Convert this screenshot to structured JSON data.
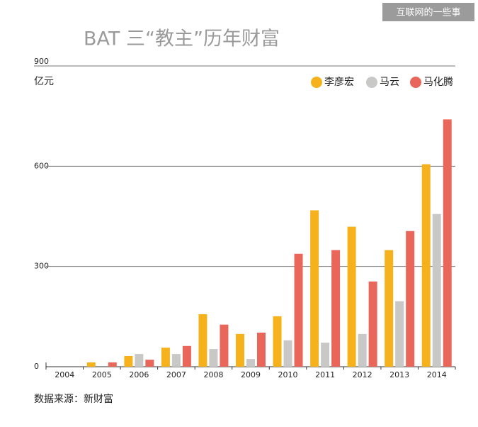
{
  "watermark": "互联网的一些事",
  "chart_data": {
    "type": "bar",
    "title": "BAT 三“教主”历年财富",
    "y_label": "亿元",
    "source": "数据来源：新财富",
    "categories": [
      "2004",
      "2005",
      "2006",
      "2007",
      "2008",
      "2009",
      "2010",
      "2011",
      "2012",
      "2013",
      "2014"
    ],
    "series": [
      {
        "name": "李彦宏",
        "color": "#f5b21c",
        "values": [
          0,
          13,
          32,
          57,
          157,
          98,
          151,
          468,
          419,
          349,
          606
        ]
      },
      {
        "name": "马云",
        "color": "#c8c8c6",
        "values": [
          0,
          0,
          38,
          38,
          53,
          23,
          79,
          72,
          98,
          196,
          457
        ]
      },
      {
        "name": "马化腾",
        "color": "#e8665a",
        "values": [
          0,
          13,
          21,
          62,
          126,
          102,
          338,
          349,
          255,
          406,
          740
        ]
      }
    ],
    "ylim": [
      0,
      900
    ],
    "yticks": [
      0,
      300,
      600,
      900
    ],
    "grid": true,
    "legend": "top-right"
  }
}
